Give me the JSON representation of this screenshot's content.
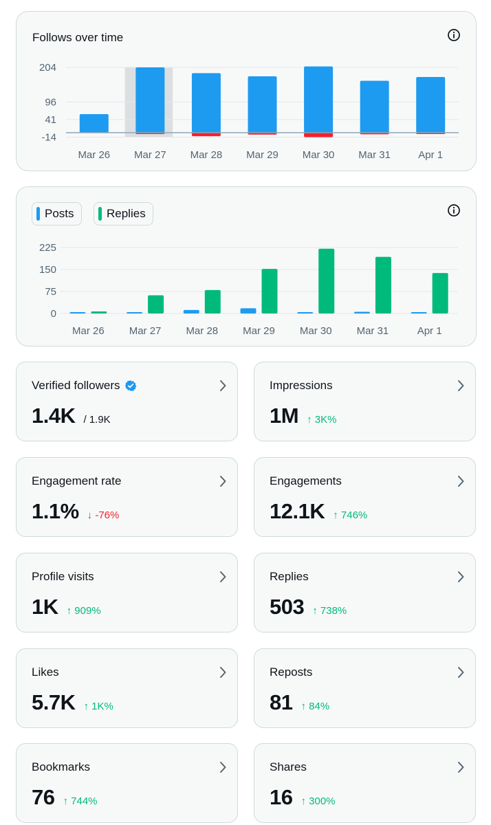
{
  "colors": {
    "blue": "#1d9bf0",
    "green": "#00ba7c",
    "red": "#f4212e",
    "positive": "#00ba7c",
    "negative": "#f4212e",
    "grid": "#e1e8ed",
    "highlight": "#dcdfe1"
  },
  "follows_chart": {
    "title": "Follows over time",
    "info_icon": "info-icon"
  },
  "posts_chart": {
    "legend": [
      {
        "label": "Posts",
        "color": "#1d9bf0"
      },
      {
        "label": "Replies",
        "color": "#00ba7c"
      }
    ],
    "info_icon": "info-icon"
  },
  "chart_data": [
    {
      "type": "bar",
      "title": "Follows over time",
      "categories": [
        "Mar 26",
        "Mar 27",
        "Mar 28",
        "Mar 29",
        "Mar 30",
        "Mar 31",
        "Apr 1"
      ],
      "series": [
        {
          "name": "Follows",
          "color": "#1d9bf0",
          "values": [
            58,
            204,
            186,
            176,
            207,
            162,
            174
          ]
        },
        {
          "name": "Unfollows",
          "color": "#f4212e",
          "values": [
            0,
            -4,
            -11,
            -6,
            -14,
            -5,
            -3
          ]
        }
      ],
      "yticks": [
        204,
        96,
        41,
        -14
      ],
      "ylim": [
        -14,
        204
      ],
      "highlighted_category": "Mar 27",
      "xlabel": "",
      "ylabel": ""
    },
    {
      "type": "bar",
      "title": "",
      "categories": [
        "Mar 26",
        "Mar 27",
        "Mar 28",
        "Mar 29",
        "Mar 30",
        "Mar 31",
        "Apr 1"
      ],
      "series": [
        {
          "name": "Posts",
          "color": "#1d9bf0",
          "values": [
            3,
            2,
            12,
            18,
            1,
            6,
            0
          ]
        },
        {
          "name": "Replies",
          "color": "#00ba7c",
          "values": [
            7,
            62,
            80,
            152,
            221,
            193,
            138
          ]
        }
      ],
      "yticks": [
        225,
        150,
        75,
        0
      ],
      "ylim": [
        0,
        225
      ],
      "xlabel": "",
      "ylabel": ""
    }
  ],
  "metrics": [
    {
      "label": "Verified followers",
      "value": "1.4K",
      "sub": "/ 1.9K",
      "change": "",
      "direction": "",
      "verified": true
    },
    {
      "label": "Impressions",
      "value": "1M",
      "sub": "",
      "change": "↑ 3K%",
      "direction": "up"
    },
    {
      "label": "Engagement rate",
      "value": "1.1%",
      "sub": "",
      "change": "↓ -76%",
      "direction": "down"
    },
    {
      "label": "Engagements",
      "value": "12.1K",
      "sub": "",
      "change": "↑ 746%",
      "direction": "up"
    },
    {
      "label": "Profile visits",
      "value": "1K",
      "sub": "",
      "change": "↑ 909%",
      "direction": "up"
    },
    {
      "label": "Replies",
      "value": "503",
      "sub": "",
      "change": "↑ 738%",
      "direction": "up"
    },
    {
      "label": "Likes",
      "value": "5.7K",
      "sub": "",
      "change": "↑ 1K%",
      "direction": "up"
    },
    {
      "label": "Reposts",
      "value": "81",
      "sub": "",
      "change": "↑ 84%",
      "direction": "up"
    },
    {
      "label": "Bookmarks",
      "value": "76",
      "sub": "",
      "change": "↑ 744%",
      "direction": "up"
    },
    {
      "label": "Shares",
      "value": "16",
      "sub": "",
      "change": "↑ 300%",
      "direction": "up"
    }
  ]
}
